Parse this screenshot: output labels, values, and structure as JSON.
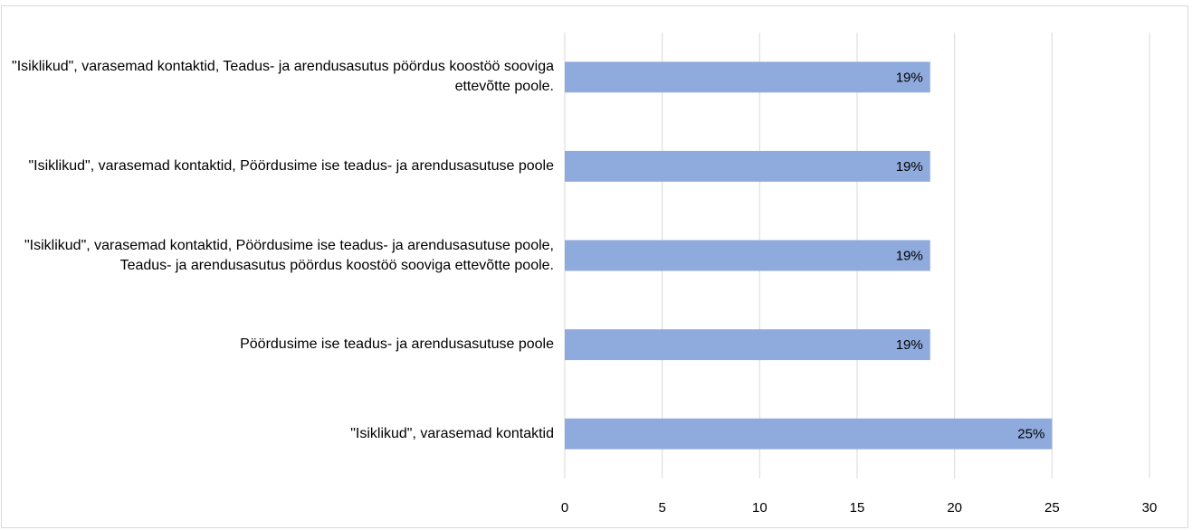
{
  "chart_data": {
    "type": "hbar",
    "categories": [
      "\"Isiklikud\", varasemad kontaktid, Teadus- ja arendusasutus pöördus koostöö sooviga ettevõtte poole.",
      "\"Isiklikud\", varasemad kontaktid, Pöördusime ise teadus- ja arendusasutuse poole",
      "\"Isiklikud\", varasemad kontaktid, Pöördusime ise teadus- ja arendusasutuse poole, Teadus- ja arendusasutus pöördus koostöö sooviga ettevõtte poole.",
      "Pöördusime ise teadus- ja arendusasutuse poole",
      "\"Isiklikud\", varasemad kontaktid"
    ],
    "values": [
      18.75,
      18.75,
      18.75,
      18.75,
      25
    ],
    "value_labels": [
      "19%",
      "19%",
      "19%",
      "19%",
      "25%"
    ],
    "color": "#8faadc",
    "xlim": [
      0,
      30
    ],
    "xticks": [
      0,
      5,
      10,
      15,
      20,
      25,
      30
    ],
    "grid": true
  }
}
